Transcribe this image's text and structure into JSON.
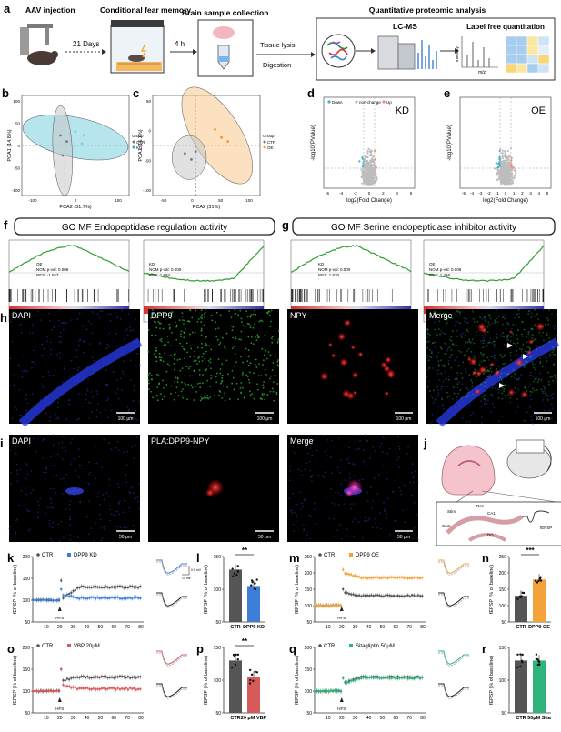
{
  "colors": {
    "ctr": "#555555",
    "kd": "#3d7fd6",
    "oe": "#f3a33a",
    "vbp": "#d65a5a",
    "sita": "#2fb37a",
    "cyan_pca": "#7ccfe0",
    "orange_pca": "#f7c98c",
    "gray_pca": "#c8c8c8",
    "down": "#45b0c8",
    "up": "#f08d6e",
    "nochange": "#bdbdbd",
    "gsea": "#2ea02e"
  },
  "panel_a": {
    "letter": "a",
    "step1": "AAV injection",
    "step2": "Conditional fear memory",
    "days": "21 Days",
    "step3": "Brain sample collection",
    "hours": "4 h",
    "lysis": "Tissue lysis",
    "digestion": "Digestion",
    "quant_title": "Quantitative proteomic analysis",
    "lcms": "LC-MS",
    "lfq": "Label free quantitation",
    "intensity": "Intensity",
    "mz": "m/z"
  },
  "panel_b": {
    "letter": "b",
    "xlabel": "PCA2 (31.7%)",
    "ylabel": "PCA1 (14.8%)",
    "legend_title": "Group",
    "legend": [
      "CTR",
      "KD"
    ],
    "xticks": [
      "-100",
      "0",
      "100"
    ],
    "yticks": [
      "100",
      "50",
      "0",
      "-50",
      "-100"
    ]
  },
  "panel_c": {
    "letter": "c",
    "xlabel": "PCA2 (31%)",
    "ylabel": "PCA1 (15.7%)",
    "legend_title": "Group",
    "legend": [
      "CTR",
      "OE"
    ],
    "xticks": [
      "-50",
      "0",
      "50",
      "100"
    ],
    "yticks": [
      "50",
      "0",
      "-50",
      "-100"
    ]
  },
  "panel_d": {
    "letter": "d",
    "tag": "KD",
    "legend": [
      "Down",
      "non-change",
      "Up"
    ],
    "xlabel": "log2(Fold Change)",
    "ylabel": "-log10(PValue)",
    "xticks": [
      "-6",
      "-4",
      "-2",
      "0",
      "2",
      "4",
      "6"
    ]
  },
  "panel_e": {
    "letter": "e",
    "tag": "OE",
    "xlabel": "log2(Fold Change)",
    "ylabel": "-log10(PValue)",
    "xticks": [
      "-5",
      "-4",
      "-3",
      "-2",
      "-1",
      "0",
      "1",
      "2",
      "3",
      "4",
      "5"
    ]
  },
  "panel_f": {
    "letter": "f",
    "title": "GO MF Endopeptidase regulation activity",
    "plot1": {
      "group": "OE",
      "nom": "NOM p-val: 0.006",
      "nes": "NES: -1.557"
    },
    "plot2": {
      "group": "KD",
      "nom": "NOM p-val: 0.000",
      "nes": "NES: 1.684"
    }
  },
  "panel_g": {
    "letter": "g",
    "title": "GO MF Serine endopeptidase inhibitor activity",
    "plot1": {
      "group": "KD",
      "nom": "NOM p-val: 0.000",
      "nes": "NES: 1.630"
    },
    "plot2": {
      "group": "OE",
      "nom": "NOM p-val: 0.006",
      "nes": "NES: 1.468"
    }
  },
  "panel_h": {
    "letter": "h",
    "labels": [
      "DAPI",
      "DPP9",
      "NPY",
      "Merge"
    ],
    "scale": "100 μm"
  },
  "panel_i": {
    "letter": "i",
    "labels": [
      "DAPI",
      "PLA:DPP9-NPY",
      "Merge"
    ],
    "scale": "50 μm"
  },
  "panel_j": {
    "letter": "j",
    "labels": [
      "Stim",
      "Rec",
      "CA1",
      "CA3",
      "DG",
      "fEPSP"
    ]
  },
  "ephys": {
    "ylabel": "fEPSP (% of baseline)",
    "hfs": "HFS",
    "xticks": [
      "10",
      "20",
      "30",
      "40",
      "50",
      "60",
      "70",
      "80"
    ],
    "k": {
      "letter": "k",
      "legend": [
        "CTR",
        "DPP9 KD"
      ],
      "scale_mv": "0.5 mV",
      "scale_ms": "10 ms"
    },
    "m": {
      "letter": "m",
      "legend": [
        "CTR",
        "DPP9 OE"
      ]
    },
    "o": {
      "letter": "o",
      "legend": [
        "CTR",
        "VBP 20μM"
      ]
    },
    "q": {
      "letter": "q",
      "legend": [
        "CTR",
        "Sitagliptin 50μM"
      ]
    }
  },
  "chart_data": [
    {
      "panel": "k",
      "type": "line",
      "xlabel": "Time (min)",
      "ylabel": "fEPSP (% of baseline)",
      "ylim": [
        50,
        200
      ],
      "yticks": [
        50,
        100,
        150,
        200
      ],
      "xlim": [
        0,
        82
      ],
      "series": [
        {
          "name": "CTR",
          "baseline": 100,
          "peak": 145,
          "plateau": 130,
          "start": 105
        },
        {
          "name": "DPP9 KD",
          "baseline": 100,
          "peak": 125,
          "plateau": 105,
          "start": 112
        }
      ]
    },
    {
      "panel": "l",
      "type": "bar",
      "categories": [
        "CTR",
        "DPP9 KD"
      ],
      "values": [
        130,
        105
      ],
      "ylabel": "fEPSP (% of baseline)",
      "ylim": [
        50,
        150
      ],
      "yticks": [
        50,
        100,
        150
      ],
      "significance": "**"
    },
    {
      "panel": "m",
      "type": "line",
      "xlabel": "Time (min)",
      "ylabel": "fEPSP (% of baseline)",
      "ylim": [
        50,
        250
      ],
      "yticks": [
        50,
        100,
        150,
        200,
        250
      ],
      "xlim": [
        0,
        82
      ],
      "series": [
        {
          "name": "CTR",
          "baseline": 100,
          "peak": 150,
          "plateau": 130,
          "start": 140
        },
        {
          "name": "DPP9 OE",
          "baseline": 100,
          "peak": 210,
          "plateau": 185,
          "start": 200
        }
      ]
    },
    {
      "panel": "n",
      "type": "bar",
      "categories": [
        "CTR",
        "DPP9 OE"
      ],
      "values": [
        130,
        180
      ],
      "ylabel": "fEPSP (% of baseline)",
      "ylim": [
        50,
        250
      ],
      "yticks": [
        50,
        100,
        150,
        200,
        250
      ],
      "significance": "***"
    },
    {
      "panel": "o",
      "type": "line",
      "xlabel": "Time (min)",
      "ylabel": "fEPSP (% of baseline)",
      "ylim": [
        50,
        200
      ],
      "yticks": [
        50,
        100,
        150,
        200
      ],
      "xlim": [
        0,
        82
      ],
      "series": [
        {
          "name": "CTR",
          "baseline": 100,
          "peak": 150,
          "plateau": 132,
          "start": 125
        },
        {
          "name": "VBP 20μM",
          "baseline": 100,
          "peak": 150,
          "plateau": 105,
          "start": 115
        }
      ]
    },
    {
      "panel": "p",
      "type": "bar",
      "categories": [
        "CTR",
        "20 μM VBP"
      ],
      "values": [
        130,
        105
      ],
      "ylabel": "fEPSP (% of baseline)",
      "ylim": [
        50,
        150
      ],
      "yticks": [
        50,
        100,
        150
      ],
      "significance": "**"
    },
    {
      "panel": "q",
      "type": "line",
      "xlabel": "Time (min)",
      "ylabel": "fEPSP (% of baseline)",
      "ylim": [
        50,
        200
      ],
      "yticks": [
        50,
        100,
        150,
        200
      ],
      "xlim": [
        0,
        82
      ],
      "series": [
        {
          "name": "CTR",
          "baseline": 100,
          "peak": 130,
          "plateau": 132,
          "start": 120
        },
        {
          "name": "Sitagliptin 50μM",
          "baseline": 100,
          "peak": 130,
          "plateau": 130,
          "start": 118
        }
      ]
    },
    {
      "panel": "r",
      "type": "bar",
      "categories": [
        "CTR",
        "50μM Sita"
      ],
      "values": [
        130,
        130
      ],
      "ylabel": "fEPSP (% of baseline)",
      "ylim": [
        50,
        150
      ],
      "yticks": [
        50,
        100,
        150
      ],
      "significance": ""
    }
  ]
}
